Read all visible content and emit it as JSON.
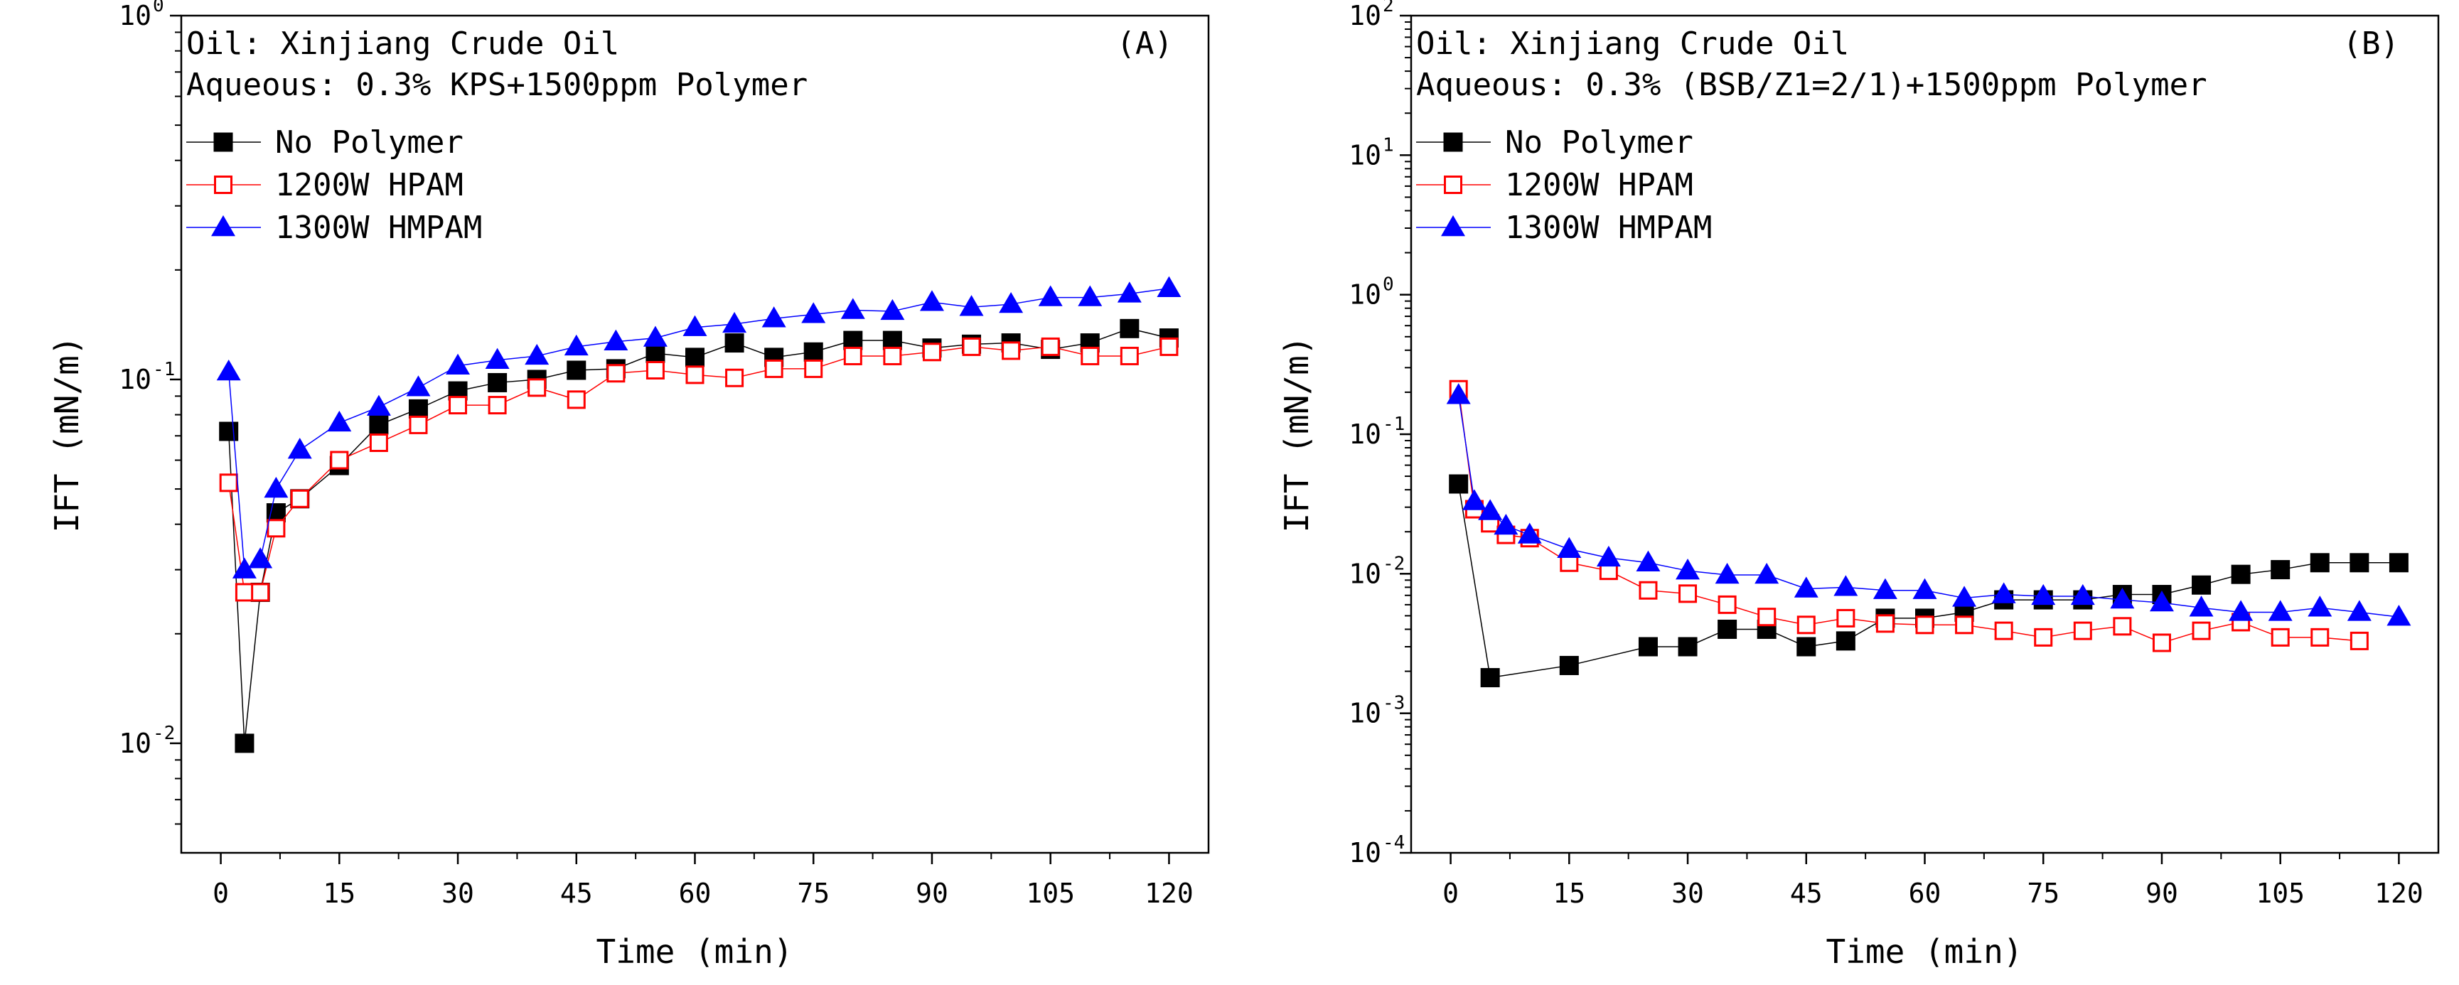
{
  "chart_data": [
    {
      "type": "scatter",
      "panel_label": "(A)",
      "annotation_oil": "Oil: Xinjiang Crude Oil",
      "annotation_aqueous": "Aqueous: 0.3% KPS+1500ppm Polymer",
      "xlabel": "Time (min)",
      "ylabel": "IFT (mN/m)",
      "xlim": [
        -5,
        125
      ],
      "ylim": [
        0.005,
        1
      ],
      "yscale": "log",
      "x_ticks": [
        0,
        15,
        30,
        45,
        60,
        75,
        90,
        105,
        120
      ],
      "y_ticks": [
        {
          "value": 1,
          "base": "10",
          "exp": "0"
        },
        {
          "value": 0.1,
          "base": "10",
          "exp": "-1"
        },
        {
          "value": 0.01,
          "base": "10",
          "exp": "-2"
        }
      ],
      "legend_position": "top-left",
      "series": [
        {
          "name": "No Polymer",
          "color": "#000000",
          "marker": "filled-square",
          "x": [
            1,
            3,
            5,
            7,
            10,
            15,
            20,
            25,
            30,
            35,
            40,
            45,
            50,
            55,
            60,
            65,
            70,
            75,
            80,
            85,
            90,
            95,
            100,
            105,
            110,
            115,
            120
          ],
          "y": [
            0.072,
            0.01,
            0.026,
            0.043,
            0.047,
            0.058,
            0.075,
            0.083,
            0.093,
            0.098,
            0.1,
            0.106,
            0.107,
            0.118,
            0.115,
            0.126,
            0.115,
            0.119,
            0.128,
            0.128,
            0.122,
            0.125,
            0.126,
            0.121,
            0.126,
            0.138,
            0.13
          ]
        },
        {
          "name": "1200W HPAM",
          "color": "#ff0000",
          "marker": "open-square",
          "x": [
            1,
            3,
            5,
            7,
            10,
            15,
            20,
            25,
            30,
            35,
            40,
            45,
            50,
            55,
            60,
            65,
            70,
            75,
            80,
            85,
            90,
            95,
            100,
            105,
            110,
            115,
            120
          ],
          "y": [
            0.052,
            0.026,
            0.026,
            0.039,
            0.047,
            0.06,
            0.067,
            0.075,
            0.085,
            0.085,
            0.095,
            0.088,
            0.104,
            0.106,
            0.103,
            0.101,
            0.107,
            0.107,
            0.116,
            0.116,
            0.119,
            0.123,
            0.12,
            0.123,
            0.116,
            0.116,
            0.123
          ]
        },
        {
          "name": "1300W HMPAM",
          "color": "#0000ff",
          "marker": "filled-triangle",
          "x": [
            1,
            3,
            5,
            7,
            10,
            15,
            20,
            25,
            30,
            35,
            40,
            45,
            50,
            55,
            60,
            65,
            70,
            75,
            80,
            85,
            90,
            95,
            100,
            105,
            110,
            115,
            120
          ],
          "y": [
            0.105,
            0.03,
            0.032,
            0.05,
            0.064,
            0.076,
            0.084,
            0.095,
            0.109,
            0.113,
            0.116,
            0.123,
            0.127,
            0.13,
            0.139,
            0.142,
            0.147,
            0.151,
            0.155,
            0.154,
            0.163,
            0.158,
            0.161,
            0.168,
            0.168,
            0.172,
            0.178
          ]
        }
      ]
    },
    {
      "type": "scatter",
      "panel_label": "(B)",
      "annotation_oil": "Oil: Xinjiang Crude Oil",
      "annotation_aqueous": "Aqueous: 0.3% (BSB/Z1=2/1)+1500ppm Polymer",
      "xlabel": "Time (min)",
      "ylabel": "IFT (mN/m)",
      "xlim": [
        -5,
        125
      ],
      "ylim": [
        0.0001,
        100
      ],
      "yscale": "log",
      "x_ticks": [
        0,
        15,
        30,
        45,
        60,
        75,
        90,
        105,
        120
      ],
      "y_ticks": [
        {
          "value": 100,
          "base": "10",
          "exp": "2"
        },
        {
          "value": 10,
          "base": "10",
          "exp": "1"
        },
        {
          "value": 1,
          "base": "10",
          "exp": "0"
        },
        {
          "value": 0.1,
          "base": "10",
          "exp": "-1"
        },
        {
          "value": 0.01,
          "base": "10",
          "exp": "-2"
        },
        {
          "value": 0.001,
          "base": "10",
          "exp": "-3"
        },
        {
          "value": 0.0001,
          "base": "10",
          "exp": "-4"
        }
      ],
      "legend_position": "top-left",
      "series": [
        {
          "name": "No Polymer",
          "color": "#000000",
          "marker": "filled-square",
          "x": [
            1,
            5,
            15,
            25,
            30,
            35,
            40,
            45,
            50,
            55,
            60,
            65,
            70,
            75,
            80,
            85,
            90,
            95,
            100,
            105,
            110,
            115,
            120
          ],
          "y": [
            0.044,
            0.0018,
            0.0022,
            0.003,
            0.003,
            0.004,
            0.004,
            0.003,
            0.0033,
            0.0048,
            0.0048,
            0.0053,
            0.0065,
            0.0065,
            0.0065,
            0.0071,
            0.0071,
            0.0083,
            0.0099,
            0.0107,
            0.012,
            0.012,
            0.012
          ]
        },
        {
          "name": "1200W HPAM",
          "color": "#ff0000",
          "marker": "open-square",
          "x": [
            1,
            3,
            5,
            7,
            10,
            15,
            20,
            25,
            30,
            35,
            40,
            45,
            50,
            55,
            60,
            65,
            70,
            75,
            80,
            85,
            90,
            95,
            100,
            105,
            110,
            115
          ],
          "y": [
            0.21,
            0.029,
            0.023,
            0.019,
            0.018,
            0.012,
            0.0105,
            0.0076,
            0.0072,
            0.006,
            0.0049,
            0.0043,
            0.0048,
            0.0044,
            0.0043,
            0.0043,
            0.0039,
            0.0035,
            0.0039,
            0.0042,
            0.0032,
            0.0039,
            0.0045,
            0.0035,
            0.0035,
            0.0033
          ]
        },
        {
          "name": "1300W HMPAM",
          "color": "#0000ff",
          "marker": "filled-triangle",
          "x": [
            1,
            3,
            5,
            7,
            10,
            15,
            20,
            25,
            30,
            35,
            40,
            45,
            50,
            55,
            60,
            65,
            70,
            75,
            80,
            85,
            90,
            95,
            100,
            105,
            110,
            115,
            120
          ],
          "y": [
            0.19,
            0.033,
            0.028,
            0.022,
            0.019,
            0.015,
            0.013,
            0.012,
            0.0105,
            0.0098,
            0.0098,
            0.0078,
            0.008,
            0.0076,
            0.0076,
            0.0067,
            0.0071,
            0.0069,
            0.0069,
            0.0065,
            0.0062,
            0.0057,
            0.0053,
            0.0053,
            0.0057,
            0.0053,
            0.0049
          ]
        }
      ]
    }
  ]
}
